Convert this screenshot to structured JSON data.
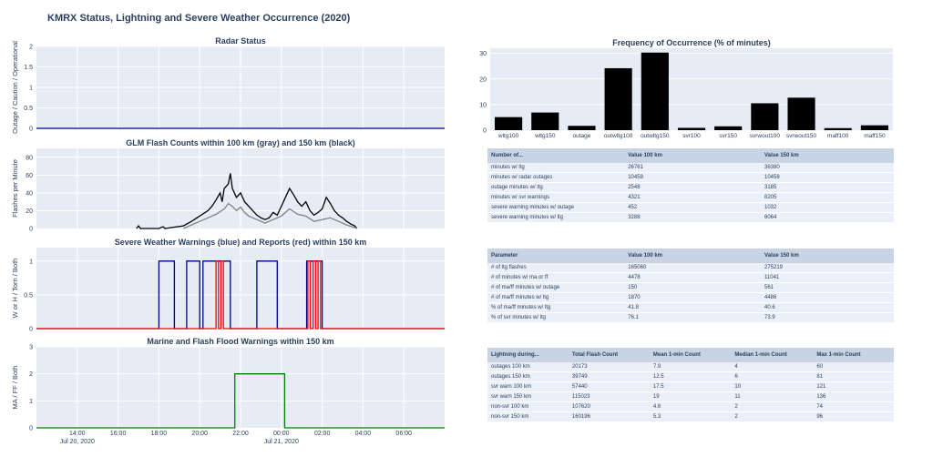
{
  "title": "KMRX Status, Lightning and Severe Weather Occurrence (2020)",
  "chart_data": [
    {
      "id": "radar",
      "type": "line",
      "title": "Radar Status",
      "ylabel": "Outage / Caution / Operational",
      "ylim": [
        0,
        2
      ],
      "yticks": [
        0,
        0.5,
        1,
        1.5,
        2
      ],
      "series": [
        {
          "color": "#00008b",
          "points": [
            [
              0,
              0
            ],
            [
              1,
              0
            ]
          ]
        }
      ]
    },
    {
      "id": "glm",
      "type": "line",
      "title": "GLM Flash Counts within 100 km (gray) and 150 km (black)",
      "ylabel": "Flashes per Minute",
      "ylim": [
        0,
        90
      ],
      "yticks": [
        0,
        20,
        40,
        60,
        80
      ],
      "series": [
        {
          "color": "#000000",
          "points": [
            [
              0.245,
              0
            ],
            [
              0.25,
              3
            ],
            [
              0.255,
              0
            ],
            [
              0.3,
              0
            ],
            [
              0.31,
              2
            ],
            [
              0.315,
              0
            ],
            [
              0.33,
              1
            ],
            [
              0.36,
              3
            ],
            [
              0.38,
              8
            ],
            [
              0.4,
              14
            ],
            [
              0.42,
              20
            ],
            [
              0.43,
              25
            ],
            [
              0.44,
              32
            ],
            [
              0.45,
              40
            ],
            [
              0.455,
              30
            ],
            [
              0.46,
              45
            ],
            [
              0.47,
              50
            ],
            [
              0.475,
              62
            ],
            [
              0.48,
              45
            ],
            [
              0.49,
              35
            ],
            [
              0.5,
              40
            ],
            [
              0.51,
              30
            ],
            [
              0.52,
              25
            ],
            [
              0.53,
              20
            ],
            [
              0.54,
              15
            ],
            [
              0.55,
              12
            ],
            [
              0.56,
              10
            ],
            [
              0.57,
              12
            ],
            [
              0.58,
              18
            ],
            [
              0.59,
              15
            ],
            [
              0.6,
              25
            ],
            [
              0.61,
              35
            ],
            [
              0.62,
              45
            ],
            [
              0.63,
              38
            ],
            [
              0.64,
              30
            ],
            [
              0.65,
              25
            ],
            [
              0.66,
              30
            ],
            [
              0.67,
              20
            ],
            [
              0.68,
              15
            ],
            [
              0.69,
              18
            ],
            [
              0.7,
              22
            ],
            [
              0.71,
              35
            ],
            [
              0.72,
              28
            ],
            [
              0.73,
              20
            ],
            [
              0.74,
              15
            ],
            [
              0.75,
              12
            ],
            [
              0.76,
              8
            ],
            [
              0.77,
              5
            ],
            [
              0.78,
              3
            ],
            [
              0.785,
              0
            ]
          ]
        },
        {
          "color": "#808080",
          "points": [
            [
              0.36,
              0
            ],
            [
              0.38,
              4
            ],
            [
              0.4,
              8
            ],
            [
              0.42,
              12
            ],
            [
              0.44,
              16
            ],
            [
              0.46,
              22
            ],
            [
              0.47,
              28
            ],
            [
              0.48,
              25
            ],
            [
              0.49,
              20
            ],
            [
              0.5,
              24
            ],
            [
              0.51,
              18
            ],
            [
              0.52,
              14
            ],
            [
              0.54,
              10
            ],
            [
              0.56,
              6
            ],
            [
              0.58,
              10
            ],
            [
              0.6,
              14
            ],
            [
              0.62,
              22
            ],
            [
              0.64,
              16
            ],
            [
              0.66,
              14
            ],
            [
              0.68,
              8
            ],
            [
              0.7,
              10
            ],
            [
              0.72,
              12
            ],
            [
              0.74,
              8
            ],
            [
              0.76,
              4
            ],
            [
              0.78,
              1
            ],
            [
              0.785,
              0
            ]
          ]
        }
      ]
    },
    {
      "id": "severe",
      "type": "line",
      "title": "Severe Weather Warnings (blue) and Reports (red) within 150 km",
      "ylabel": "W or H / Torn / Both",
      "ylim": [
        0,
        1.2
      ],
      "yticks": [
        0,
        0.5,
        1
      ],
      "series": [
        {
          "color": "#00008b",
          "points": [
            [
              0,
              0
            ],
            [
              0.3,
              0
            ],
            [
              0.3,
              1
            ],
            [
              0.338,
              1
            ],
            [
              0.338,
              0
            ],
            [
              0.368,
              0
            ],
            [
              0.368,
              1
            ],
            [
              0.4,
              1
            ],
            [
              0.4,
              0
            ],
            [
              0.408,
              0
            ],
            [
              0.408,
              1
            ],
            [
              0.475,
              1
            ],
            [
              0.475,
              0
            ],
            [
              0.54,
              0
            ],
            [
              0.54,
              1
            ],
            [
              0.59,
              1
            ],
            [
              0.59,
              0
            ],
            [
              0.662,
              0
            ],
            [
              0.662,
              1
            ],
            [
              0.7,
              1
            ],
            [
              0.7,
              0
            ],
            [
              1,
              0
            ]
          ]
        },
        {
          "color": "#ff0000",
          "points": [
            [
              0,
              0
            ],
            [
              0.44,
              0
            ],
            [
              0.44,
              1
            ],
            [
              0.446,
              1
            ],
            [
              0.446,
              0
            ],
            [
              0.452,
              0
            ],
            [
              0.452,
              1
            ],
            [
              0.458,
              1
            ],
            [
              0.458,
              0
            ],
            [
              0.665,
              0
            ],
            [
              0.665,
              1
            ],
            [
              0.671,
              1
            ],
            [
              0.671,
              0
            ],
            [
              0.678,
              0
            ],
            [
              0.678,
              1
            ],
            [
              0.684,
              1
            ],
            [
              0.684,
              0
            ],
            [
              0.69,
              0
            ],
            [
              0.69,
              1
            ],
            [
              0.696,
              1
            ],
            [
              0.696,
              0
            ],
            [
              1,
              0
            ]
          ]
        }
      ]
    },
    {
      "id": "marine",
      "type": "line",
      "title": "Marine and Flash Flood Warnings within 150 km",
      "ylabel": "MA / FF / Both",
      "ylim": [
        0,
        3
      ],
      "yticks": [
        0,
        1,
        2,
        3
      ],
      "xticks": [
        {
          "x": 0.1,
          "label": "14:00",
          "sub": "Jul 20, 2020"
        },
        {
          "x": 0.2,
          "label": "16:00",
          "sub": ""
        },
        {
          "x": 0.3,
          "label": "18:00",
          "sub": ""
        },
        {
          "x": 0.4,
          "label": "20:00",
          "sub": ""
        },
        {
          "x": 0.5,
          "label": "22:00",
          "sub": ""
        },
        {
          "x": 0.6,
          "label": "00:00",
          "sub": "Jul 21, 2020"
        },
        {
          "x": 0.7,
          "label": "02:00",
          "sub": ""
        },
        {
          "x": 0.8,
          "label": "04:00",
          "sub": ""
        },
        {
          "x": 0.9,
          "label": "06:00",
          "sub": ""
        }
      ],
      "series": [
        {
          "color": "#008000",
          "points": [
            [
              0,
              0
            ],
            [
              0.486,
              0
            ],
            [
              0.486,
              2
            ],
            [
              0.608,
              2
            ],
            [
              0.608,
              0
            ],
            [
              1,
              0
            ]
          ]
        }
      ]
    },
    {
      "id": "freq",
      "type": "bar",
      "title": "Frequency of Occurrence (% of minutes)",
      "ylim": [
        0,
        32
      ],
      "yticks": [
        0,
        10,
        20,
        30
      ],
      "categories": [
        "wltg100",
        "wltg150",
        "outage",
        "outwltg100",
        "outwltg150",
        "svr100",
        "svr150",
        "svrwout100",
        "svrwout150",
        "maff100",
        "maff150"
      ],
      "values": [
        5.1,
        6.9,
        1.7,
        24.2,
        30.3,
        0.9,
        1.5,
        10.5,
        12.7,
        0.8,
        1.9
      ],
      "color": "#000000"
    }
  ],
  "tables": [
    {
      "headers": [
        "Number of...",
        "Value 100 km",
        "Value 150 km"
      ],
      "rows": [
        [
          "minutes w/ ltg",
          "26761",
          "36380"
        ],
        [
          "minutes w/ radar outages",
          "10458",
          "10458"
        ],
        [
          "outage minutes w/ ltg",
          "2548",
          "3185"
        ],
        [
          "minutes w/ svr warnings",
          "4321",
          "8205"
        ],
        [
          "severe warning minutes w/ outage",
          "452",
          "1032"
        ],
        [
          "severe warning minutes w/ ltg",
          "3288",
          "6064"
        ]
      ]
    },
    {
      "headers": [
        "Parameter",
        "Value 100 km",
        "Value 150 km"
      ],
      "rows": [
        [
          "# of ltg flashes",
          "165060",
          "275219"
        ],
        [
          "# of minutes w/ ma or ff",
          "4478",
          "11041"
        ],
        [
          "# of ma/ff minutes w/ outage",
          "150",
          "561"
        ],
        [
          "# of ma/ff minutes w/ ltg",
          "1870",
          "4486"
        ],
        [
          "% of ma/ff minutes w/ ltg",
          "41.8",
          "40.6"
        ],
        [
          "% of svr minutes w/ ltg",
          "76.1",
          "73.9"
        ]
      ]
    },
    {
      "headers": [
        "Lightning during...",
        "Total Flash Count",
        "Mean 1-min Count",
        "Median 1-min Count",
        "Max 1-min Count"
      ],
      "rows": [
        [
          "outages 100 km",
          "20173",
          "7.9",
          "4",
          "60"
        ],
        [
          "outages 150 km",
          "39749",
          "12.5",
          "6",
          "81"
        ],
        [
          "svr warn 100 km",
          "57440",
          "17.5",
          "10",
          "121"
        ],
        [
          "svr warn 150 km",
          "115023",
          "19",
          "11",
          "136"
        ],
        [
          "non-svr 100 km",
          "107620",
          "4.6",
          "2",
          "74"
        ],
        [
          "non-svr 150 km",
          "160196",
          "5.3",
          "2",
          "96"
        ]
      ]
    }
  ]
}
